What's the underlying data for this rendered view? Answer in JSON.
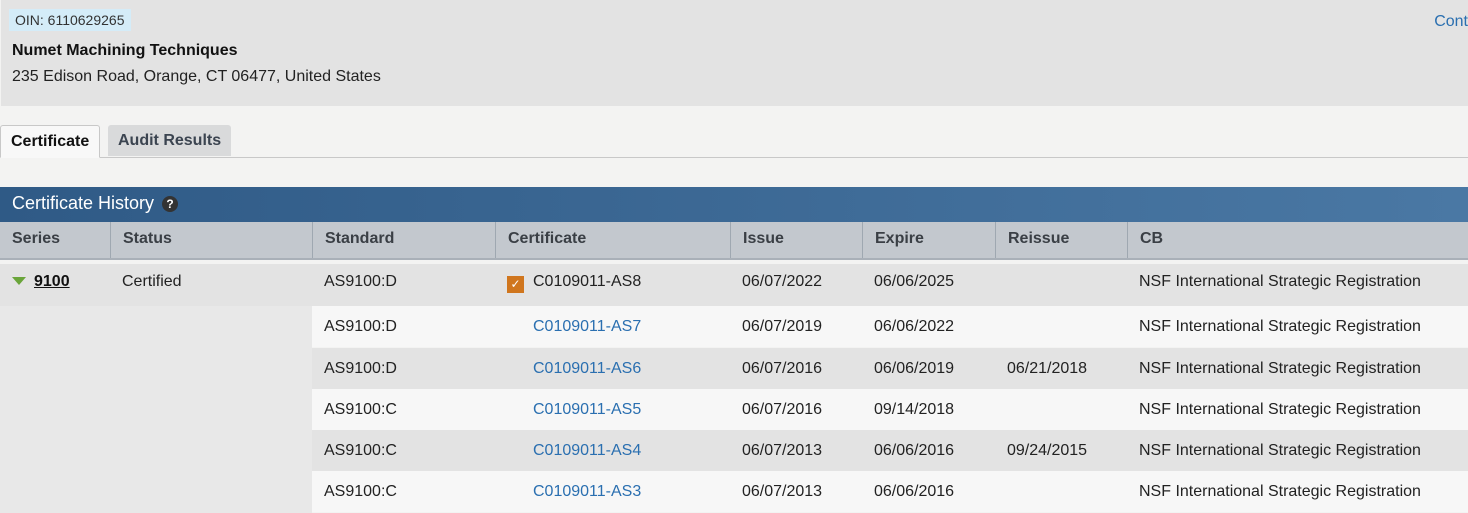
{
  "org": {
    "oin": "OIN: 6110629265",
    "name": "Numet Machining Techniques",
    "address": "235 Edison Road, Orange, CT 06477, United States",
    "contact_link": "Cont"
  },
  "tabs": [
    {
      "label": "Certificate",
      "active": true
    },
    {
      "label": "Audit Results",
      "active": false
    }
  ],
  "history": {
    "title": "Certificate History",
    "help": "?",
    "columns": [
      "Series",
      "Status",
      "Standard",
      "Certificate",
      "Issue",
      "Expire",
      "Reissue",
      "CB"
    ],
    "series": "9100",
    "status": "Certified",
    "rows": [
      {
        "standard": "AS9100:D",
        "certificate": "C0109011-AS8",
        "issue": "06/07/2022",
        "expire": "06/06/2025",
        "reissue": "",
        "cb": "NSF International Strategic Registration",
        "current": true
      },
      {
        "standard": "AS9100:D",
        "certificate": "C0109011-AS7",
        "issue": "06/07/2019",
        "expire": "06/06/2022",
        "reissue": "",
        "cb": "NSF International Strategic Registration"
      },
      {
        "standard": "AS9100:D",
        "certificate": "C0109011-AS6",
        "issue": "06/07/2016",
        "expire": "06/06/2019",
        "reissue": "06/21/2018",
        "cb": "NSF International Strategic Registration"
      },
      {
        "standard": "AS9100:C",
        "certificate": "C0109011-AS5",
        "issue": "06/07/2016",
        "expire": "09/14/2018",
        "reissue": "",
        "cb": "NSF International Strategic Registration"
      },
      {
        "standard": "AS9100:C",
        "certificate": "C0109011-AS4",
        "issue": "06/07/2013",
        "expire": "06/06/2016",
        "reissue": "09/24/2015",
        "cb": "NSF International Strategic Registration"
      },
      {
        "standard": "AS9100:C",
        "certificate": "C0109011-AS3",
        "issue": "06/07/2013",
        "expire": "06/06/2016",
        "reissue": "",
        "cb": "NSF International Strategic Registration"
      }
    ]
  },
  "colors": {
    "header_bar": "#2f5a86",
    "link": "#2a6fb0",
    "checkbox": "#d0761e",
    "triangle": "#6aa53a"
  }
}
